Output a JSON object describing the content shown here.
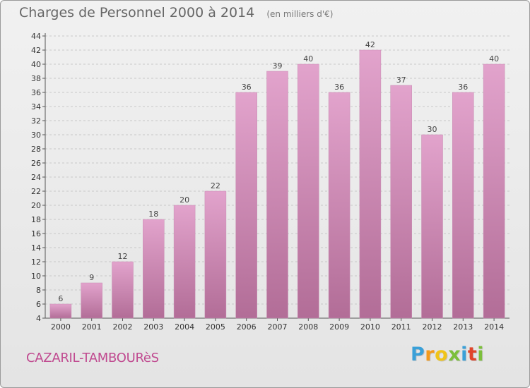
{
  "chart_data": {
    "type": "bar",
    "title": "Charges de Personnel 2000 à 2014",
    "subtitle": "(en milliers d'€)",
    "categories": [
      "2000",
      "2001",
      "2002",
      "2003",
      "2004",
      "2005",
      "2006",
      "2007",
      "2008",
      "2009",
      "2010",
      "2011",
      "2012",
      "2013",
      "2014"
    ],
    "values": [
      6,
      9,
      12,
      18,
      20,
      22,
      36,
      39,
      40,
      36,
      42,
      37,
      30,
      36,
      40
    ],
    "ylim": [
      4,
      44
    ],
    "yticks": [
      4,
      6,
      8,
      10,
      12,
      14,
      16,
      18,
      20,
      22,
      24,
      26,
      28,
      30,
      32,
      34,
      36,
      38,
      40,
      42,
      44
    ],
    "grid": true,
    "bar_color_top": "#e2a3cc",
    "bar_color_bottom": "#b26d97"
  },
  "commune_label": "CAZARIL-TAMBOURèS",
  "logo": {
    "letters": [
      "P",
      "r",
      "o",
      "x",
      "i",
      "t",
      "i"
    ],
    "colors": [
      "#3aa0d8",
      "#f39a1c",
      "#f0c419",
      "#7cbf3b",
      "#3aa0d8",
      "#e0452b",
      "#7cbf3b"
    ]
  }
}
